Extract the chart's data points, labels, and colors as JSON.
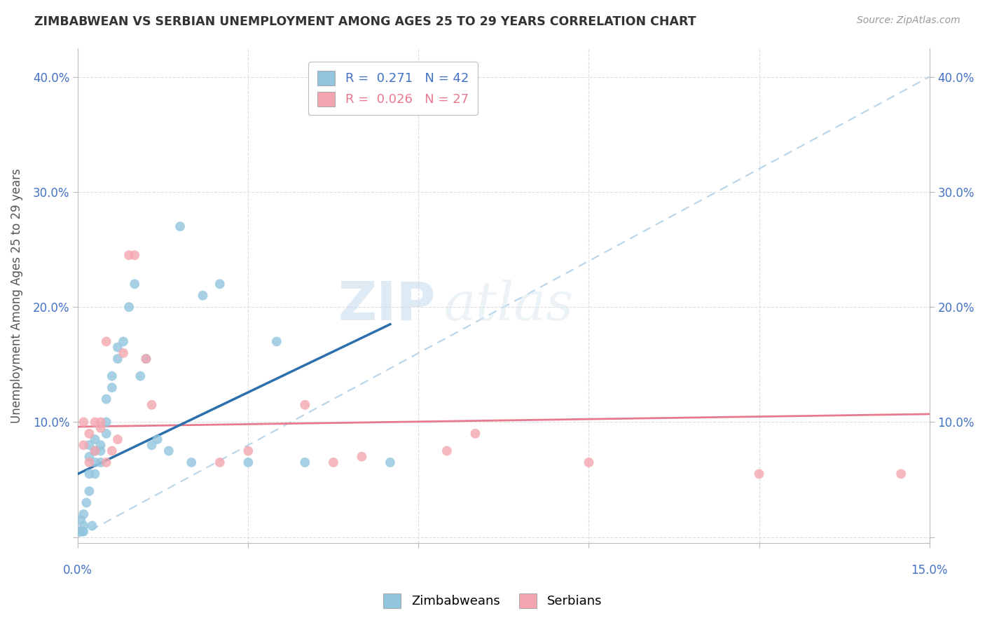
{
  "title": "ZIMBABWEAN VS SERBIAN UNEMPLOYMENT AMONG AGES 25 TO 29 YEARS CORRELATION CHART",
  "source": "Source: ZipAtlas.com",
  "ylabel": "Unemployment Among Ages 25 to 29 years",
  "watermark_zip": "ZIP",
  "watermark_atlas": "atlas",
  "legend_r1": "R =  0.271",
  "legend_n1": "N = 42",
  "legend_r2": "R =  0.026",
  "legend_n2": "N = 27",
  "zim_color": "#92c5de",
  "ser_color": "#f4a6b0",
  "zim_line_color": "#2c6fad",
  "ser_line_color": "#e87a90",
  "dashed_line_color": "#b8d4e8",
  "yticks": [
    0.0,
    0.1,
    0.2,
    0.3,
    0.4
  ],
  "ytick_labels": [
    "",
    "10.0%",
    "20.0%",
    "30.0%",
    "40.0%"
  ],
  "xlim": [
    0.0,
    0.15
  ],
  "ylim": [
    -0.005,
    0.425
  ],
  "zim_scatter_x": [
    0.0005,
    0.0005,
    0.0008,
    0.001,
    0.001,
    0.001,
    0.0015,
    0.002,
    0.002,
    0.002,
    0.002,
    0.0025,
    0.003,
    0.003,
    0.003,
    0.003,
    0.004,
    0.004,
    0.004,
    0.005,
    0.005,
    0.005,
    0.006,
    0.006,
    0.007,
    0.007,
    0.008,
    0.009,
    0.01,
    0.011,
    0.012,
    0.013,
    0.014,
    0.016,
    0.018,
    0.02,
    0.022,
    0.025,
    0.03,
    0.035,
    0.04,
    0.055
  ],
  "zim_scatter_y": [
    0.005,
    0.015,
    0.005,
    0.005,
    0.01,
    0.02,
    0.03,
    0.04,
    0.055,
    0.07,
    0.08,
    0.01,
    0.055,
    0.065,
    0.075,
    0.085,
    0.065,
    0.075,
    0.08,
    0.09,
    0.1,
    0.12,
    0.13,
    0.14,
    0.155,
    0.165,
    0.17,
    0.2,
    0.22,
    0.14,
    0.155,
    0.08,
    0.085,
    0.075,
    0.27,
    0.065,
    0.21,
    0.22,
    0.065,
    0.17,
    0.065,
    0.065
  ],
  "ser_scatter_x": [
    0.001,
    0.001,
    0.002,
    0.002,
    0.003,
    0.003,
    0.004,
    0.004,
    0.005,
    0.006,
    0.007,
    0.008,
    0.009,
    0.01,
    0.012,
    0.013,
    0.025,
    0.03,
    0.04,
    0.045,
    0.05,
    0.065,
    0.07,
    0.09,
    0.12,
    0.145,
    0.005
  ],
  "ser_scatter_y": [
    0.1,
    0.08,
    0.09,
    0.065,
    0.075,
    0.1,
    0.095,
    0.1,
    0.065,
    0.075,
    0.085,
    0.16,
    0.245,
    0.245,
    0.155,
    0.115,
    0.065,
    0.075,
    0.115,
    0.065,
    0.07,
    0.075,
    0.09,
    0.065,
    0.055,
    0.055,
    0.17
  ],
  "zim_trendline_x": [
    0.0,
    0.055
  ],
  "zim_trendline_y": [
    0.055,
    0.185
  ],
  "ser_trendline_x": [
    0.0,
    0.15
  ],
  "ser_trendline_y": [
    0.096,
    0.107
  ],
  "dashed_line_x": [
    0.0,
    0.15
  ],
  "dashed_line_y": [
    0.0,
    0.4
  ]
}
